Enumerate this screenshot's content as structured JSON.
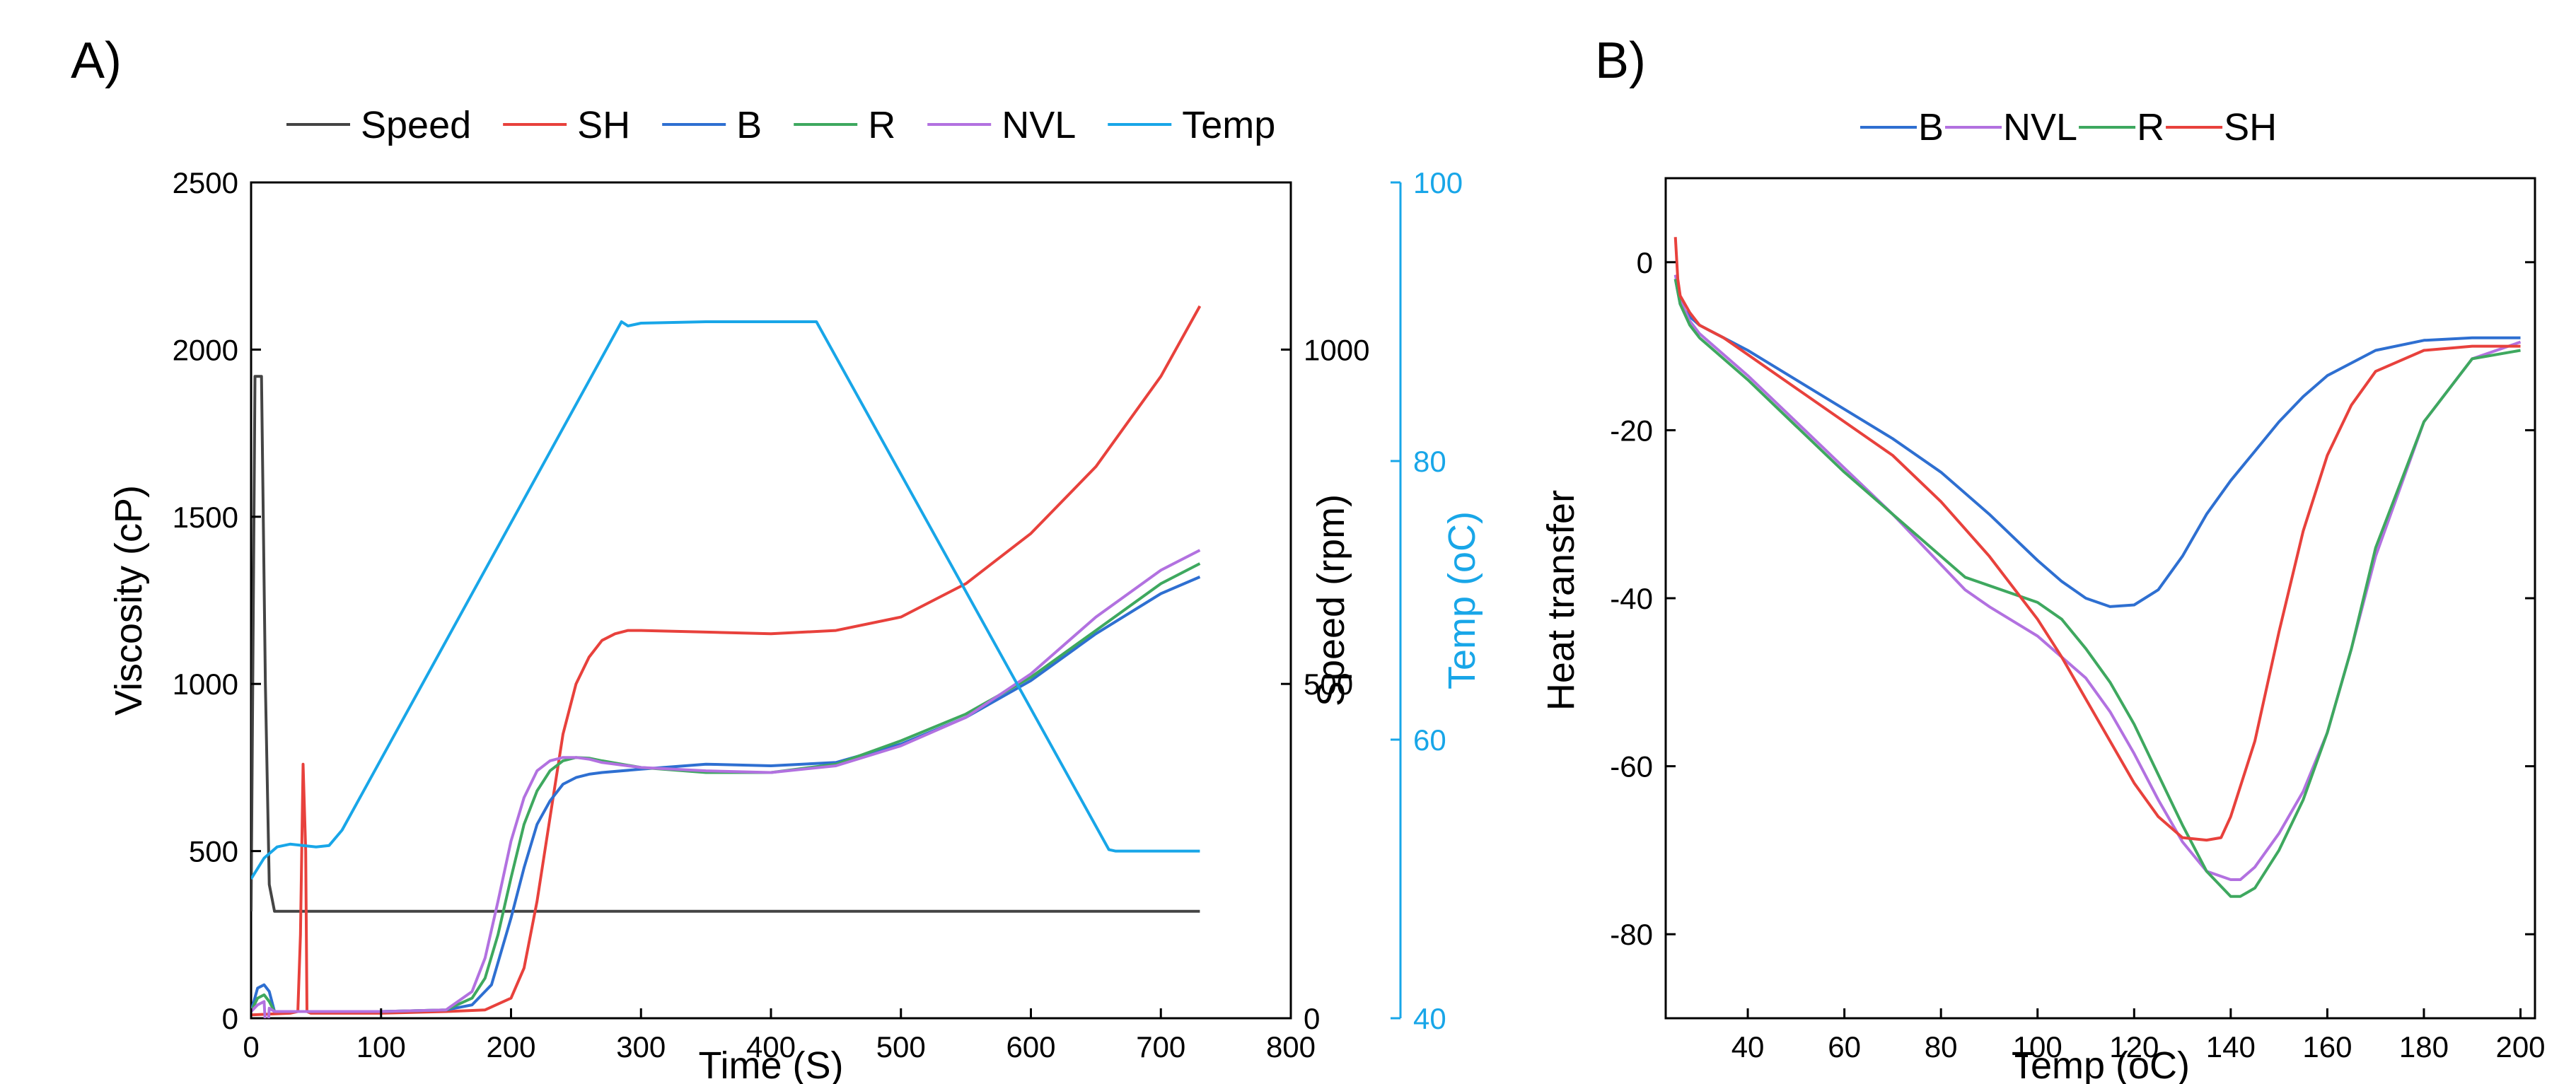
{
  "colors": {
    "Speed": "#444444",
    "SH": "#e8413c",
    "B": "#2e6fd1",
    "R": "#3ea85f",
    "NVL": "#b271e0",
    "Temp": "#18a6e8",
    "axis": "#000000",
    "temp_axis": "#18a6e8"
  },
  "chart_data": [
    {
      "panel_label": "A)",
      "type": "line",
      "legend": [
        "Speed",
        "SH",
        "B",
        "R",
        "NVL",
        "Temp"
      ],
      "xlabel": "Time (S)",
      "xlim": [
        0,
        800
      ],
      "xticks": [
        "0",
        "100",
        "200",
        "300",
        "400",
        "500",
        "600",
        "700",
        "800"
      ],
      "ylabel": "Viscosity (cP)",
      "ylim": [
        0,
        2500
      ],
      "yticks": [
        "0",
        "500",
        "1000",
        "1500",
        "2000",
        "2500"
      ],
      "y2label": "Speed (rpm)",
      "y2lim": [
        0,
        1250
      ],
      "y2ticks": [
        "0",
        "500",
        "1000"
      ],
      "y3label": "Temp (oC)",
      "y3lim": [
        40,
        100
      ],
      "y3ticks": [
        "40",
        "60",
        "80",
        "100"
      ],
      "series": [
        {
          "name": "Speed",
          "axis": "speed",
          "x": [
            0,
            3,
            8,
            11,
            14,
            18,
            730
          ],
          "y": [
            160,
            960,
            960,
            500,
            200,
            160,
            160
          ]
        },
        {
          "name": "SH",
          "axis": "viscosity",
          "x": [
            0,
            30,
            36,
            38,
            40,
            42,
            43,
            46,
            50,
            100,
            150,
            180,
            200,
            210,
            220,
            230,
            240,
            250,
            260,
            270,
            280,
            290,
            300,
            350,
            400,
            450,
            500,
            550,
            600,
            650,
            700,
            730
          ],
          "y": [
            10,
            15,
            20,
            250,
            760,
            500,
            20,
            15,
            15,
            15,
            20,
            25,
            60,
            150,
            350,
            600,
            850,
            1000,
            1080,
            1130,
            1150,
            1160,
            1160,
            1155,
            1150,
            1160,
            1200,
            1300,
            1450,
            1650,
            1920,
            2130
          ]
        },
        {
          "name": "B",
          "axis": "viscosity",
          "x": [
            0,
            5,
            10,
            14,
            18,
            20,
            50,
            100,
            150,
            170,
            185,
            200,
            210,
            220,
            230,
            240,
            250,
            260,
            270,
            300,
            350,
            400,
            450,
            500,
            550,
            600,
            650,
            700,
            730
          ],
          "y": [
            20,
            90,
            100,
            80,
            20,
            20,
            20,
            20,
            25,
            40,
            100,
            300,
            450,
            580,
            650,
            700,
            720,
            730,
            735,
            745,
            760,
            755,
            765,
            820,
            900,
            1010,
            1150,
            1270,
            1320
          ]
        },
        {
          "name": "R",
          "axis": "viscosity",
          "x": [
            0,
            5,
            10,
            14,
            18,
            20,
            50,
            100,
            150,
            170,
            180,
            190,
            200,
            210,
            220,
            230,
            240,
            250,
            260,
            270,
            300,
            350,
            400,
            450,
            500,
            550,
            600,
            650,
            700,
            730
          ],
          "y": [
            20,
            60,
            70,
            50,
            20,
            20,
            20,
            20,
            25,
            60,
            120,
            250,
            420,
            580,
            680,
            740,
            770,
            780,
            778,
            770,
            750,
            735,
            735,
            760,
            830,
            910,
            1020,
            1160,
            1300,
            1360
          ]
        },
        {
          "name": "NVL",
          "axis": "viscosity",
          "x": [
            0,
            5,
            10,
            12,
            14,
            18,
            20,
            50,
            100,
            150,
            170,
            180,
            190,
            200,
            210,
            220,
            230,
            240,
            250,
            260,
            270,
            300,
            350,
            400,
            450,
            500,
            550,
            600,
            650,
            700,
            730
          ],
          "y": [
            20,
            40,
            50,
            -90,
            30,
            20,
            20,
            20,
            20,
            25,
            80,
            180,
            350,
            530,
            660,
            740,
            770,
            780,
            780,
            775,
            765,
            750,
            740,
            735,
            755,
            815,
            900,
            1030,
            1200,
            1340,
            1400
          ]
        },
        {
          "name": "Temp",
          "axis": "temp",
          "x": [
            0,
            10,
            20,
            30,
            40,
            50,
            60,
            70,
            285,
            290,
            300,
            350,
            400,
            435,
            660,
            665,
            730
          ],
          "y": [
            50,
            51.5,
            52.3,
            52.5,
            52.4,
            52.3,
            52.4,
            53.5,
            90,
            89.7,
            89.9,
            90,
            90,
            90,
            52.1,
            52,
            52
          ]
        }
      ]
    },
    {
      "panel_label": "B)",
      "type": "line",
      "legend": [
        "B",
        "NVL",
        "R",
        "SH"
      ],
      "xlabel": "Temp (oC)",
      "xlim": [
        23,
        203
      ],
      "xticks": [
        "40",
        "60",
        "80",
        "100",
        "120",
        "140",
        "160",
        "180",
        "200"
      ],
      "ylabel": "Heat transfer",
      "ylim": [
        -90,
        10
      ],
      "yticks": [
        "0",
        "-20",
        "-40",
        "-60",
        "-80"
      ],
      "series": [
        {
          "name": "B",
          "x": [
            25,
            26,
            28,
            30,
            35,
            40,
            50,
            60,
            70,
            80,
            90,
            100,
            105,
            110,
            115,
            120,
            125,
            130,
            135,
            140,
            145,
            150,
            155,
            160,
            170,
            180,
            190,
            200
          ],
          "y": [
            -2,
            -5,
            -6.5,
            -7.5,
            -9,
            -10.5,
            -14,
            -17.5,
            -21,
            -25,
            -30,
            -35.5,
            -38,
            -40,
            -41,
            -40.8,
            -39,
            -35,
            -30,
            -26,
            -22.5,
            -19,
            -16,
            -13.5,
            -10.5,
            -9.3,
            -9,
            -9
          ]
        },
        {
          "name": "NVL",
          "x": [
            25,
            26,
            28,
            30,
            35,
            40,
            50,
            60,
            70,
            80,
            85,
            90,
            100,
            110,
            115,
            120,
            125,
            130,
            135,
            140,
            142,
            145,
            150,
            155,
            160,
            165,
            170,
            180,
            190,
            200
          ],
          "y": [
            -1.5,
            -4.5,
            -7,
            -8.5,
            -11,
            -13.5,
            -19,
            -24.5,
            -30,
            -36,
            -39,
            -41,
            -44.5,
            -49.5,
            -53.5,
            -58.5,
            -64,
            -69,
            -72.5,
            -73.5,
            -73.5,
            -72,
            -68,
            -63,
            -56,
            -46,
            -35,
            -19,
            -11.5,
            -9.5
          ]
        },
        {
          "name": "R",
          "x": [
            25,
            26,
            28,
            30,
            35,
            40,
            50,
            60,
            70,
            80,
            85,
            90,
            100,
            105,
            110,
            115,
            120,
            125,
            130,
            135,
            140,
            142,
            145,
            150,
            155,
            160,
            165,
            170,
            180,
            190,
            200
          ],
          "y": [
            -2,
            -5,
            -7.5,
            -9,
            -11.5,
            -14,
            -19.5,
            -25,
            -30,
            -35,
            -37.5,
            -38.5,
            -40.5,
            -42.5,
            -46,
            -50,
            -55,
            -61,
            -67,
            -72.5,
            -75.5,
            -75.5,
            -74.5,
            -70,
            -64,
            -56,
            -46,
            -34,
            -19,
            -11.5,
            -10.5
          ]
        },
        {
          "name": "SH",
          "x": [
            25,
            25.5,
            26,
            28,
            30,
            35,
            40,
            50,
            60,
            70,
            80,
            90,
            100,
            105,
            110,
            115,
            120,
            125,
            130,
            135,
            138,
            140,
            145,
            150,
            155,
            160,
            165,
            170,
            180,
            190,
            200
          ],
          "y": [
            3,
            -2,
            -4,
            -6,
            -7.5,
            -9,
            -11,
            -15,
            -19,
            -23,
            -28.5,
            -35,
            -42.5,
            -47,
            -52,
            -57,
            -62,
            -66,
            -68.5,
            -68.8,
            -68.5,
            -66,
            -57,
            -44,
            -32,
            -23,
            -17,
            -13,
            -10.5,
            -10,
            -10
          ]
        }
      ]
    }
  ]
}
